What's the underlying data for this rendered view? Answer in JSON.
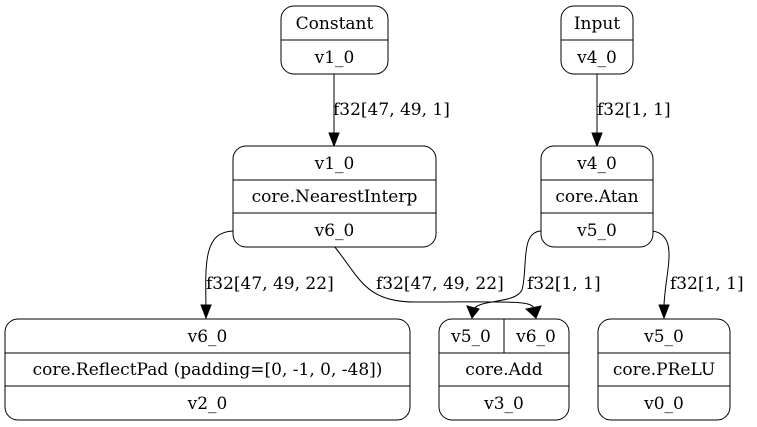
{
  "colors": {
    "constant_fill": "#ffb6c1",
    "input_fill": "#a0f4ff",
    "line": "#000000",
    "background": "#ffffff"
  },
  "nodes": {
    "constant": {
      "title": "Constant",
      "output": "v1_0"
    },
    "input": {
      "title": "Input",
      "output": "v4_0"
    },
    "nearest_interp": {
      "input": "v1_0",
      "op": "core.NearestInterp",
      "output": "v6_0"
    },
    "atan": {
      "input": "v4_0",
      "op": "core.Atan",
      "output": "v5_0"
    },
    "reflect_pad": {
      "input": "v6_0",
      "op": "core.ReflectPad (padding=[0, -1, 0, -48])",
      "output": "v2_0"
    },
    "add": {
      "input_a": "v5_0",
      "input_b": "v6_0",
      "op": "core.Add",
      "output": "v3_0"
    },
    "prelu": {
      "input": "v5_0",
      "op": "core.PReLU",
      "output": "v0_0"
    }
  },
  "edges": {
    "constant_to_interp": "f32[47, 49, 1]",
    "input_to_atan": "f32[1, 1]",
    "interp_to_pad": "f32[47, 49, 22]",
    "interp_to_add": "f32[47, 49, 22]",
    "atan_to_add": "f32[1, 1]",
    "atan_to_prelu": "f32[1, 1]"
  }
}
